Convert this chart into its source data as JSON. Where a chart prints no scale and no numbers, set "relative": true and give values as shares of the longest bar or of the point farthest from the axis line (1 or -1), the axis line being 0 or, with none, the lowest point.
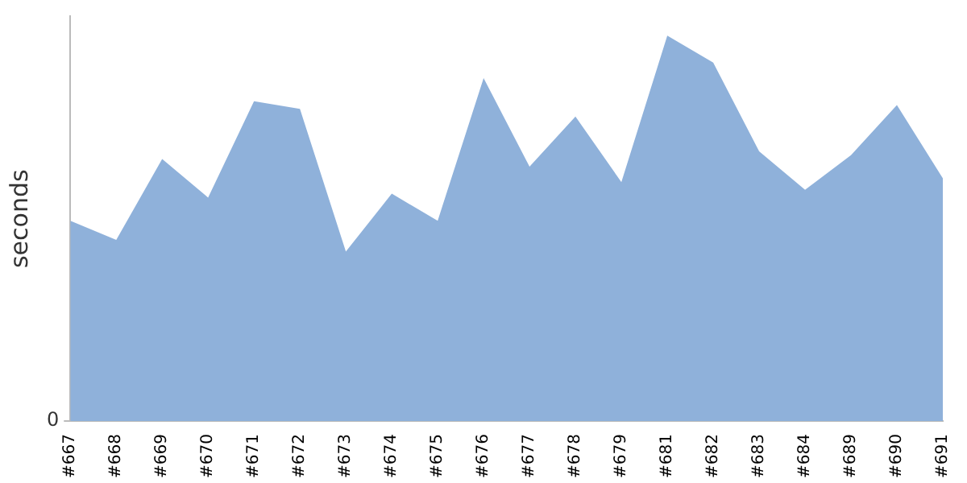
{
  "chart_data": {
    "type": "area",
    "ylabel": "seconds",
    "relative": true,
    "annotations": [
      "0"
    ],
    "grid": false,
    "legend": false,
    "categories": [
      "#667",
      "#668",
      "#669",
      "#670",
      "#671",
      "#672",
      "#673",
      "#674",
      "#675",
      "#676",
      "#677",
      "#678",
      "#679",
      "#681",
      "#682",
      "#683",
      "#684",
      "#689",
      "#690",
      "#691"
    ],
    "series": [
      {
        "color": "#8fb1da",
        "values": [
          0.52,
          0.47,
          0.68,
          0.58,
          0.83,
          0.81,
          0.44,
          0.59,
          0.52,
          0.89,
          0.66,
          0.79,
          0.62,
          1,
          0.93,
          0.7,
          0.6,
          0.69,
          0.82,
          0.63
        ]
      }
    ]
  }
}
